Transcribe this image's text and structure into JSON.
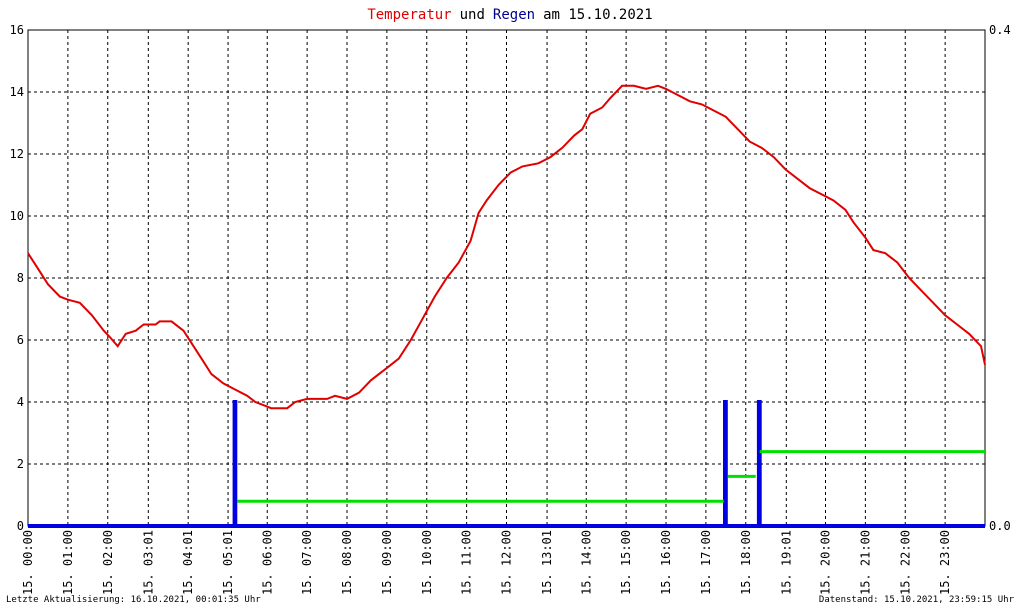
{
  "chart_data": {
    "type": "line",
    "title": [
      "Temperatur",
      "und",
      "Regen",
      "am 15.10.2021"
    ],
    "title_colors": [
      "#e00000",
      "#000000",
      "#000090",
      "#000000"
    ],
    "footer_left": "Letzte Aktualisierung: 16.10.2021, 00:01:35 Uhr",
    "footer_right": "Datenstand: 15.10.2021, 23:59:15 Uhr",
    "xlim": [
      0,
      24
    ],
    "xticks": [
      {
        "value": 0,
        "label": "15. 00:00"
      },
      {
        "value": 1,
        "label": "15. 01:00"
      },
      {
        "value": 2,
        "label": "15. 02:00"
      },
      {
        "value": 3.017,
        "label": "15. 03:01"
      },
      {
        "value": 4.017,
        "label": "15. 04:01"
      },
      {
        "value": 5.017,
        "label": "15. 05:01"
      },
      {
        "value": 6,
        "label": "15. 06:00"
      },
      {
        "value": 7,
        "label": "15. 07:00"
      },
      {
        "value": 8,
        "label": "15. 08:00"
      },
      {
        "value": 9,
        "label": "15. 09:00"
      },
      {
        "value": 10,
        "label": "15. 10:00"
      },
      {
        "value": 11,
        "label": "15. 11:00"
      },
      {
        "value": 12,
        "label": "15. 12:00"
      },
      {
        "value": 13.017,
        "label": "15. 13:01"
      },
      {
        "value": 14,
        "label": "15. 14:00"
      },
      {
        "value": 15,
        "label": "15. 15:00"
      },
      {
        "value": 16,
        "label": "15. 16:00"
      },
      {
        "value": 17,
        "label": "15. 17:00"
      },
      {
        "value": 18,
        "label": "15. 18:00"
      },
      {
        "value": 19.017,
        "label": "15. 19:01"
      },
      {
        "value": 20,
        "label": "15. 20:00"
      },
      {
        "value": 21,
        "label": "15. 21:00"
      },
      {
        "value": 22,
        "label": "15. 22:00"
      },
      {
        "value": 23,
        "label": "15. 23:00"
      }
    ],
    "ylim": [
      0,
      16
    ],
    "yticks": [
      0,
      2,
      4,
      6,
      8,
      10,
      12,
      14,
      16
    ],
    "y2lim": [
      0,
      0.4
    ],
    "y2ticks": [
      {
        "value": 0,
        "label": "0.0"
      },
      {
        "value": 0.4,
        "label": "0.4"
      }
    ],
    "grid": true,
    "series": [
      {
        "name": "Temperatur",
        "color": "#e00000",
        "width": 2,
        "x": [
          0,
          0.25,
          0.5,
          0.8,
          1.0,
          1.3,
          1.6,
          1.9,
          2.05,
          2.25,
          2.45,
          2.7,
          2.9,
          3.2,
          3.3,
          3.6,
          3.9,
          4.1,
          4.4,
          4.6,
          4.9,
          5.2,
          5.5,
          5.7,
          5.9,
          6.1,
          6.5,
          6.7,
          7.0,
          7.5,
          7.7,
          8.0,
          8.3,
          8.6,
          9.0,
          9.3,
          9.6,
          9.9,
          10.2,
          10.5,
          10.8,
          11.1,
          11.3,
          11.5,
          11.8,
          12.1,
          12.4,
          12.8,
          13.1,
          13.4,
          13.7,
          13.9,
          14.1,
          14.4,
          14.6,
          14.9,
          15.2,
          15.5,
          15.8,
          16.0,
          16.3,
          16.6,
          16.9,
          17.2,
          17.5,
          17.8,
          18.1,
          18.4,
          18.7,
          19.0,
          19.3,
          19.6,
          19.9,
          20.2,
          20.5,
          20.7,
          21.0,
          21.2,
          21.5,
          21.8,
          22.1,
          22.4,
          22.7,
          23.0,
          23.3,
          23.6,
          23.9,
          24.0
        ],
        "values": [
          8.8,
          8.3,
          7.8,
          7.4,
          7.3,
          7.2,
          6.8,
          6.3,
          6.1,
          5.8,
          6.2,
          6.3,
          6.5,
          6.5,
          6.6,
          6.6,
          6.3,
          5.9,
          5.3,
          4.9,
          4.6,
          4.4,
          4.2,
          4.0,
          3.9,
          3.8,
          3.8,
          4.0,
          4.1,
          4.1,
          4.2,
          4.1,
          4.3,
          4.7,
          5.1,
          5.4,
          6.0,
          6.7,
          7.4,
          8.0,
          8.5,
          9.2,
          10.1,
          10.5,
          11.0,
          11.4,
          11.6,
          11.7,
          11.9,
          12.2,
          12.6,
          12.8,
          13.3,
          13.5,
          13.8,
          14.2,
          14.2,
          14.1,
          14.2,
          14.1,
          13.9,
          13.7,
          13.6,
          13.4,
          13.2,
          12.8,
          12.4,
          12.2,
          11.9,
          11.5,
          11.2,
          10.9,
          10.7,
          10.5,
          10.2,
          9.8,
          9.3,
          8.9,
          8.8,
          8.5,
          8.0,
          7.6,
          7.2,
          6.8,
          6.5,
          6.2,
          5.8,
          5.2
        ]
      },
      {
        "name": "Regen",
        "color": "#0000e0",
        "width": 4,
        "axis": "y2",
        "x": [
          0,
          5.18,
          5.18,
          5.2,
          5.2,
          17.48,
          17.48,
          17.5,
          17.5,
          18.33,
          18.33,
          18.35,
          18.35,
          24
        ],
        "values": [
          0,
          0,
          0.1,
          0.1,
          0,
          0,
          0.1,
          0.1,
          0,
          0,
          0.1,
          0.1,
          0,
          0
        ]
      },
      {
        "color": "#00e000",
        "width": 3,
        "axis": "y2",
        "x": [
          5.25,
          17.45,
          17.5,
          17.55,
          18.25,
          18.3,
          18.35,
          24
        ],
        "values": [
          0.02,
          0.02,
          null,
          0.04,
          0.04,
          null,
          0.06,
          0.06
        ]
      }
    ]
  }
}
